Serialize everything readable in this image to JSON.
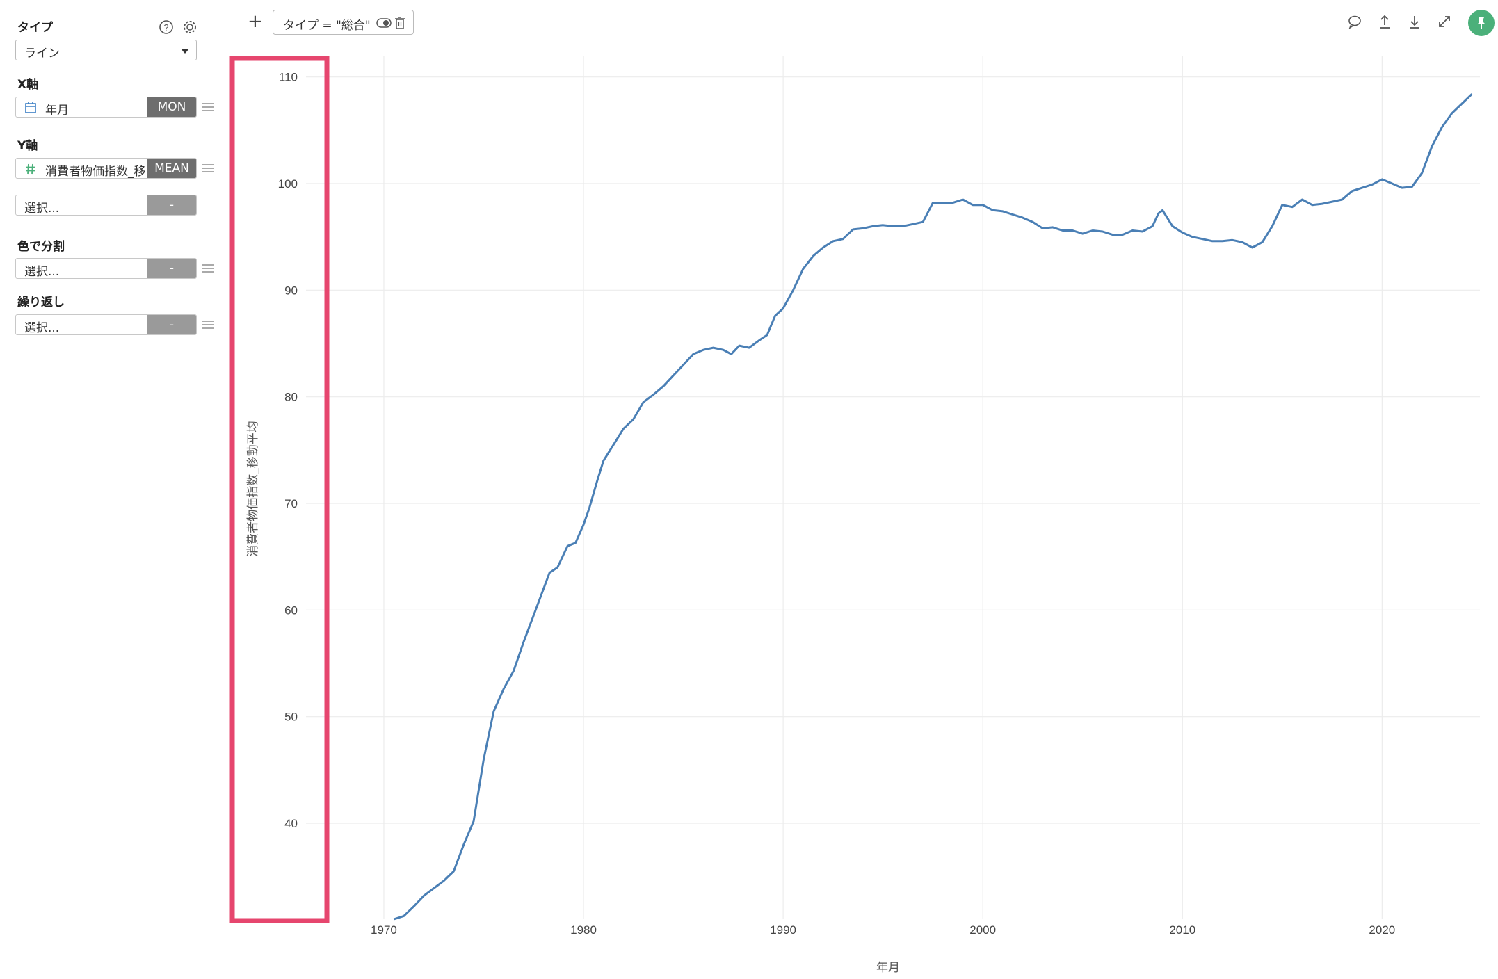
{
  "sidebar": {
    "type_label": "タイプ",
    "type_value": "ライン",
    "x_axis_label": "X軸",
    "x_field": "年月",
    "x_agg": "MON",
    "y_axis_label": "Y軸",
    "y_field": "消費者物価指数_移",
    "y_agg": "MEAN",
    "y_extra_placeholder": "選択...",
    "y_extra_agg": "-",
    "color_label": "色で分割",
    "color_placeholder": "選択...",
    "color_agg": "-",
    "repeat_label": "繰り返し",
    "repeat_placeholder": "選択...",
    "repeat_agg": "-"
  },
  "toolbar": {
    "add_label": "+",
    "filter_text": "タイプ = \"総合\""
  },
  "icons": [
    "help-icon",
    "gear-icon",
    "calendar-icon",
    "hash-icon",
    "menu-icon",
    "comment-icon",
    "upload-icon",
    "download-icon",
    "expand-icon",
    "pin-icon",
    "toggle-icon",
    "trash-icon"
  ],
  "colors": {
    "line": "#4a7fb5",
    "highlight": "#e6466e",
    "pin": "#4bb07a"
  },
  "chart_data": {
    "type": "line",
    "title": "",
    "xlabel": "年月",
    "ylabel": "消費者物価指数_移動平均",
    "xlim": [
      1966.1,
      2024.9
    ],
    "ylim": [
      31,
      112
    ],
    "x_ticks": [
      1970,
      1980,
      1990,
      2000,
      2010,
      2020
    ],
    "y_ticks": [
      40,
      50,
      60,
      70,
      80,
      90,
      100,
      110
    ],
    "grid": true,
    "series": [
      {
        "points": [
          [
            1970.5,
            31.0
          ],
          [
            1971.0,
            31.3
          ],
          [
            1971.5,
            32.2
          ],
          [
            1972.0,
            33.2
          ],
          [
            1972.5,
            33.9
          ],
          [
            1973.0,
            34.6
          ],
          [
            1973.5,
            35.5
          ],
          [
            1974.0,
            38.0
          ],
          [
            1974.5,
            40.2
          ],
          [
            1975.0,
            46.0
          ],
          [
            1975.5,
            50.5
          ],
          [
            1976.0,
            52.6
          ],
          [
            1976.5,
            54.3
          ],
          [
            1977.0,
            57.0
          ],
          [
            1977.5,
            59.5
          ],
          [
            1978.0,
            62.0
          ],
          [
            1978.3,
            63.5
          ],
          [
            1978.7,
            64.0
          ],
          [
            1979.2,
            66.0
          ],
          [
            1979.6,
            66.3
          ],
          [
            1980.0,
            68.0
          ],
          [
            1980.3,
            69.6
          ],
          [
            1980.7,
            72.2
          ],
          [
            1981.0,
            74.0
          ],
          [
            1981.5,
            75.5
          ],
          [
            1982.0,
            77.0
          ],
          [
            1982.5,
            77.9
          ],
          [
            1983.0,
            79.5
          ],
          [
            1983.5,
            80.2
          ],
          [
            1984.0,
            81.0
          ],
          [
            1984.5,
            82.0
          ],
          [
            1985.0,
            83.0
          ],
          [
            1985.5,
            84.0
          ],
          [
            1986.0,
            84.4
          ],
          [
            1986.5,
            84.6
          ],
          [
            1987.0,
            84.4
          ],
          [
            1987.4,
            84.0
          ],
          [
            1987.8,
            84.8
          ],
          [
            1988.3,
            84.6
          ],
          [
            1988.8,
            85.3
          ],
          [
            1989.2,
            85.8
          ],
          [
            1989.6,
            87.6
          ],
          [
            1990.0,
            88.3
          ],
          [
            1990.5,
            90.0
          ],
          [
            1991.0,
            92.0
          ],
          [
            1991.5,
            93.2
          ],
          [
            1992.0,
            94.0
          ],
          [
            1992.5,
            94.6
          ],
          [
            1993.0,
            94.8
          ],
          [
            1993.5,
            95.7
          ],
          [
            1994.0,
            95.8
          ],
          [
            1994.5,
            96.0
          ],
          [
            1995.0,
            96.1
          ],
          [
            1995.5,
            96.0
          ],
          [
            1996.0,
            96.0
          ],
          [
            1996.5,
            96.2
          ],
          [
            1997.0,
            96.4
          ],
          [
            1997.5,
            98.2
          ],
          [
            1998.0,
            98.2
          ],
          [
            1998.5,
            98.2
          ],
          [
            1999.0,
            98.5
          ],
          [
            1999.5,
            98.0
          ],
          [
            2000.0,
            98.0
          ],
          [
            2000.5,
            97.5
          ],
          [
            2001.0,
            97.4
          ],
          [
            2001.5,
            97.1
          ],
          [
            2002.0,
            96.8
          ],
          [
            2002.5,
            96.4
          ],
          [
            2003.0,
            95.8
          ],
          [
            2003.5,
            95.9
          ],
          [
            2004.0,
            95.6
          ],
          [
            2004.5,
            95.6
          ],
          [
            2005.0,
            95.3
          ],
          [
            2005.5,
            95.6
          ],
          [
            2006.0,
            95.5
          ],
          [
            2006.5,
            95.2
          ],
          [
            2007.0,
            95.2
          ],
          [
            2007.5,
            95.6
          ],
          [
            2008.0,
            95.5
          ],
          [
            2008.5,
            96.0
          ],
          [
            2008.8,
            97.2
          ],
          [
            2009.0,
            97.5
          ],
          [
            2009.5,
            96.0
          ],
          [
            2010.0,
            95.4
          ],
          [
            2010.5,
            95.0
          ],
          [
            2011.0,
            94.8
          ],
          [
            2011.5,
            94.6
          ],
          [
            2012.0,
            94.6
          ],
          [
            2012.5,
            94.7
          ],
          [
            2013.0,
            94.5
          ],
          [
            2013.5,
            94.0
          ],
          [
            2014.0,
            94.5
          ],
          [
            2014.5,
            96.0
          ],
          [
            2015.0,
            98.0
          ],
          [
            2015.5,
            97.8
          ],
          [
            2016.0,
            98.5
          ],
          [
            2016.5,
            98.0
          ],
          [
            2017.0,
            98.1
          ],
          [
            2017.5,
            98.3
          ],
          [
            2018.0,
            98.5
          ],
          [
            2018.5,
            99.3
          ],
          [
            2019.0,
            99.6
          ],
          [
            2019.5,
            99.9
          ],
          [
            2020.0,
            100.4
          ],
          [
            2020.5,
            100.0
          ],
          [
            2021.0,
            99.6
          ],
          [
            2021.5,
            99.7
          ],
          [
            2022.0,
            101.0
          ],
          [
            2022.5,
            103.5
          ],
          [
            2023.0,
            105.3
          ],
          [
            2023.5,
            106.6
          ],
          [
            2024.0,
            107.5
          ],
          [
            2024.5,
            108.4
          ]
        ]
      }
    ]
  }
}
